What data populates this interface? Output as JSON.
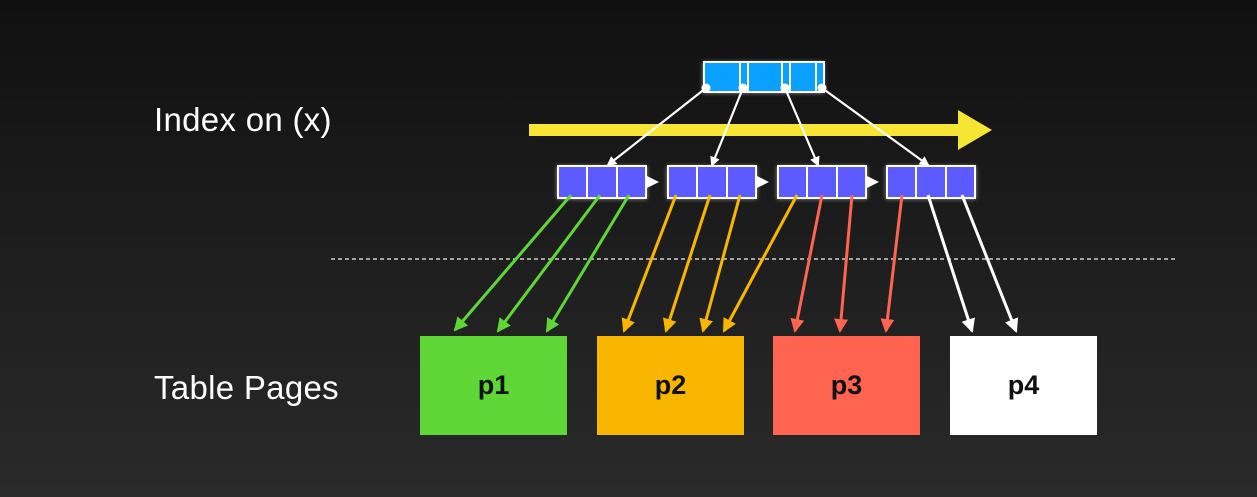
{
  "labels": {
    "index": "Index on (x)",
    "table": "Table Pages"
  },
  "pages": [
    {
      "label": "p1",
      "color": "#5dd636"
    },
    {
      "label": "p2",
      "color": "#f9b600"
    },
    {
      "label": "p3",
      "color": "#ff6450"
    },
    {
      "label": "p4",
      "color": "#ffffff"
    }
  ],
  "colors": {
    "root_node": "#0aa0ff",
    "leaf_node": "#5b5bff",
    "scan_arrow": "#f7e533",
    "pointer": "#ffffff",
    "divider": "#cfcfcf"
  },
  "structure": {
    "root_cells": 4,
    "leaf_count": 4,
    "leaf_cells": 3,
    "pointers_per_page": [
      3,
      4,
      3,
      2
    ]
  }
}
